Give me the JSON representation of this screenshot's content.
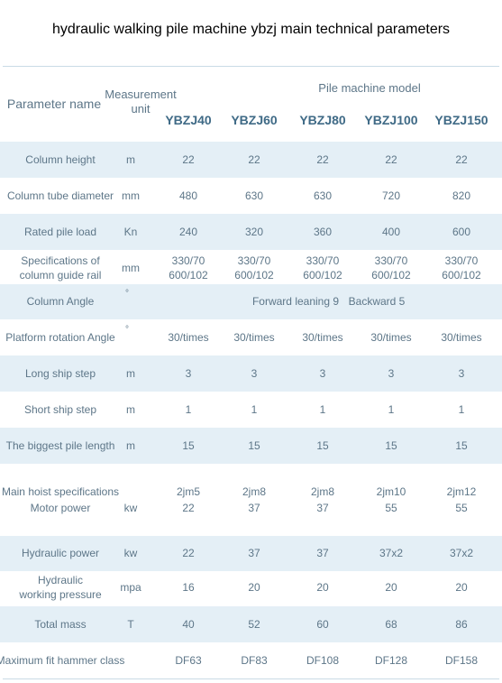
{
  "title": "hydraulic walking pile machine ybzj main technical parameters",
  "header": {
    "parameter": "Parameter name",
    "unit": [
      "Measurement",
      "unit"
    ],
    "group": "Pile machine model",
    "models": [
      "YBZJ40",
      "YBZJ60",
      "YBZJ80",
      "YBZJ100",
      "YBZJ150"
    ]
  },
  "rows": [
    {
      "name": [
        "Column height"
      ],
      "unit": "m",
      "values": [
        "22",
        "22",
        "22",
        "22",
        "22"
      ]
    },
    {
      "name": [
        "Column tube diameter"
      ],
      "unit": "mm",
      "values": [
        "480",
        "630",
        "630",
        "720",
        "820"
      ]
    },
    {
      "name": [
        "Rated pile load"
      ],
      "unit": "Kn",
      "values": [
        "240",
        "320",
        "360",
        "400",
        "600"
      ]
    },
    {
      "name": [
        "Specifications of",
        "column guide rail"
      ],
      "unit": "mm",
      "values": [
        [
          "330/70",
          "600/102"
        ],
        [
          "330/70",
          "600/102"
        ],
        [
          "330/70",
          "600/102"
        ],
        [
          "330/70",
          "600/102"
        ],
        [
          "330/70",
          "600/102"
        ]
      ]
    },
    {
      "name": [
        "Column Angle"
      ],
      "unit": "°",
      "span": [
        "Forward leaning 9",
        "Backward 5"
      ]
    },
    {
      "name": [
        "Platform rotation Angle"
      ],
      "unit": "°",
      "values": [
        "30/times",
        "30/times",
        "30/times",
        "30/times",
        "30/times"
      ]
    },
    {
      "name": [
        "Long ship step"
      ],
      "unit": "m",
      "values": [
        "3",
        "3",
        "3",
        "3",
        "3"
      ]
    },
    {
      "name": [
        "Short ship step"
      ],
      "unit": "m",
      "values": [
        "1",
        "1",
        "1",
        "1",
        "1"
      ]
    },
    {
      "name": [
        "The biggest pile length"
      ],
      "unit": "m",
      "values": [
        "15",
        "15",
        "15",
        "15",
        "15"
      ]
    },
    {
      "name": [
        "Main hoist specifications"
      ],
      "values": [
        "2jm5",
        "2jm8",
        "2jm8",
        "2jm10",
        "2jm12"
      ]
    },
    {
      "name": [
        "Motor power"
      ],
      "unit": "kw",
      "values": [
        "22",
        "37",
        "37",
        "55",
        "55"
      ]
    },
    {
      "name": [
        "Hydraulic power"
      ],
      "unit": "kw",
      "values": [
        "22",
        "37",
        "37",
        "37x2",
        "37x2"
      ]
    },
    {
      "name": [
        "Hydraulic",
        "working pressure"
      ],
      "unit": "mpa",
      "values": [
        "16",
        "20",
        "20",
        "20",
        "20"
      ]
    },
    {
      "name": [
        "Total mass"
      ],
      "unit": "T",
      "values": [
        "40",
        "52",
        "60",
        "68",
        "86"
      ]
    },
    {
      "name": [
        "Maximum fit hammer class"
      ],
      "unit": "",
      "values": [
        "DF63",
        "DF83",
        "DF108",
        "DF128",
        "DF158"
      ]
    }
  ]
}
